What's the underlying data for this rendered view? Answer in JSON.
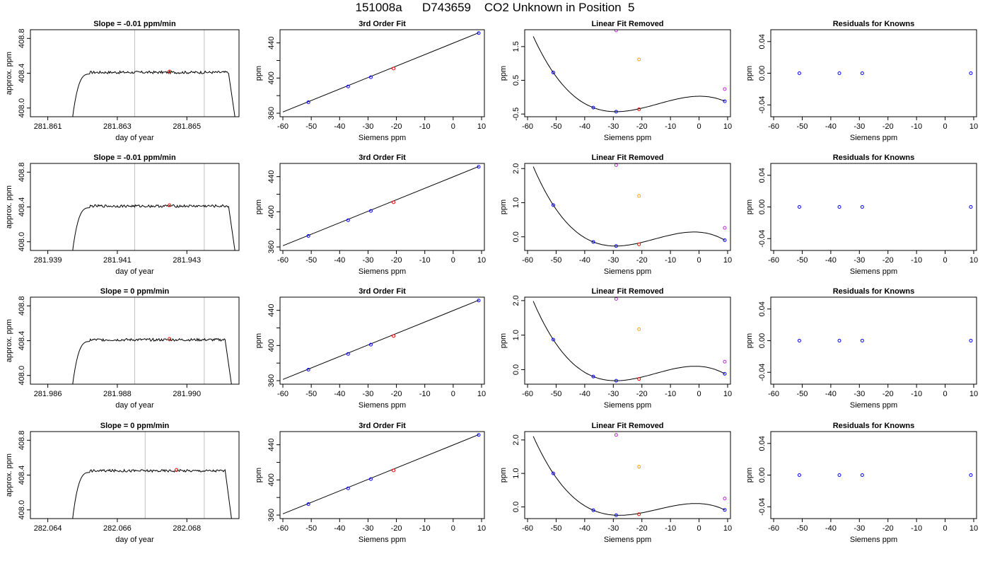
{
  "page_title": "151008a      D743659    CO2 Unknown in Position  5",
  "colors": {
    "known": "#0000ff",
    "unknown": "#ff0000",
    "orange": "#ffa500",
    "magenta": "#c020e0",
    "vline": "#bebebe",
    "curve": "#000000"
  },
  "chart_data": [
    {
      "type": "line",
      "row": 0,
      "col": 0,
      "title": "Slope =  -0.01  ppm/min",
      "xlabel": "day of year",
      "ylabel": "approx. ppm",
      "xlim": [
        281.8605,
        281.8665
      ],
      "ylim": [
        407.9,
        408.9
      ],
      "xticks": [
        281.861,
        281.863,
        281.865
      ],
      "xtick_labels": [
        "281.861",
        "281.863",
        "281.865"
      ],
      "yticks": [
        408.0,
        408.4,
        408.8
      ],
      "ytick_labels": [
        "408.0",
        "408.4",
        "408.8"
      ],
      "trace": {
        "x_start": 281.8617,
        "x_plateau": 281.8622,
        "x_end_plateau": 281.8662,
        "x_end": 281.8664,
        "level": 408.42,
        "noise": 0.03
      },
      "vlines": [
        281.8635,
        281.8655
      ],
      "mean_point": {
        "x": 281.8645,
        "y": 408.42
      }
    },
    {
      "type": "scatter",
      "row": 0,
      "col": 1,
      "title": "3rd Order Fit",
      "xlabel": "Siemens ppm",
      "ylabel": "ppm",
      "xlim": [
        -61,
        11
      ],
      "ylim": [
        356,
        455
      ],
      "xticks": [
        -60,
        -50,
        -40,
        -30,
        -20,
        -10,
        0,
        10
      ],
      "xtick_labels": [
        "-60",
        "-50",
        "-40",
        "-30",
        "-20",
        "-10",
        "0",
        "10"
      ],
      "yticks": [
        360,
        400,
        440
      ],
      "ytick_labels": [
        "360",
        "400",
        "440"
      ],
      "y_minor_ticks": [
        380,
        420
      ],
      "fit_line": {
        "x": [
          -60,
          9
        ],
        "y": [
          361.4,
          451.5
        ]
      },
      "points": [
        {
          "x": -51,
          "y": 372.5,
          "role": "known"
        },
        {
          "x": -37,
          "y": 390.4,
          "role": "known"
        },
        {
          "x": -29,
          "y": 401.0,
          "role": "known"
        },
        {
          "x": -21,
          "y": 410.8,
          "role": "unknown"
        },
        {
          "x": 9,
          "y": 451.2,
          "role": "known"
        }
      ]
    },
    {
      "type": "scatter",
      "row": 0,
      "col": 2,
      "title": "Linear Fit Removed",
      "xlabel": "Siemens ppm",
      "ylabel": "ppm",
      "xlim": [
        -61,
        11
      ],
      "ylim": [
        -0.58,
        2.0
      ],
      "xticks": [
        -60,
        -50,
        -40,
        -30,
        -20,
        -10,
        0,
        10
      ],
      "xtick_labels": [
        "-60",
        "-50",
        "-40",
        "-30",
        "-20",
        "-10",
        "0",
        "10"
      ],
      "yticks": [
        -0.5,
        0.5,
        1.5
      ],
      "ytick_labels": [
        "-0.5",
        "0.5",
        "1.5"
      ],
      "curve": {
        "x0": -58,
        "x1": 9
      },
      "points": [
        {
          "x": -51,
          "y": 0.73,
          "role": "known"
        },
        {
          "x": -37,
          "y": -0.31,
          "role": "known"
        },
        {
          "x": -29,
          "y": -0.43,
          "role": "known"
        },
        {
          "x": -21,
          "y": -0.36,
          "role": "unknown"
        },
        {
          "x": 9,
          "y": -0.12,
          "role": "known"
        },
        {
          "x": -29,
          "y": 1.98,
          "role": "magenta"
        },
        {
          "x": -21,
          "y": 1.12,
          "role": "orange"
        },
        {
          "x": 9,
          "y": 0.24,
          "role": "magenta"
        }
      ]
    },
    {
      "type": "scatter",
      "row": 0,
      "col": 3,
      "title": "Residuals for Knowns",
      "xlabel": "Siemens ppm",
      "ylabel": "ppm",
      "xlim": [
        -61,
        11
      ],
      "ylim": [
        -0.055,
        0.055
      ],
      "xticks": [
        -60,
        -50,
        -40,
        -30,
        -20,
        -10,
        0,
        10
      ],
      "xtick_labels": [
        "-60",
        "-50",
        "-40",
        "-30",
        "-20",
        "-10",
        "0",
        "10"
      ],
      "yticks": [
        -0.04,
        0.0,
        0.04
      ],
      "ytick_labels": [
        "-0.04",
        "0.00",
        "0.04"
      ],
      "points": [
        {
          "x": -51,
          "y": 0.0,
          "role": "known"
        },
        {
          "x": -37,
          "y": 0.0,
          "role": "known"
        },
        {
          "x": -29,
          "y": 0.0,
          "role": "known"
        },
        {
          "x": 9,
          "y": 0.0,
          "role": "known"
        }
      ]
    },
    {
      "type": "line",
      "row": 1,
      "col": 0,
      "title": "Slope =  -0.01  ppm/min",
      "xlabel": "day of year",
      "ylabel": "approx. ppm",
      "xlim": [
        281.9385,
        281.9445
      ],
      "ylim": [
        407.9,
        408.9
      ],
      "xticks": [
        281.939,
        281.941,
        281.943
      ],
      "xtick_labels": [
        "281.939",
        "281.941",
        "281.943"
      ],
      "yticks": [
        408.0,
        408.4,
        408.8
      ],
      "ytick_labels": [
        "408.0",
        "408.4",
        "408.8"
      ],
      "trace": {
        "x_start": 281.9397,
        "x_plateau": 281.9402,
        "x_end_plateau": 281.9442,
        "x_end": 281.9444,
        "level": 408.42,
        "noise": 0.03
      },
      "vlines": [
        281.9415,
        281.9435
      ],
      "mean_point": {
        "x": 281.9425,
        "y": 408.42
      }
    },
    {
      "type": "scatter",
      "row": 1,
      "col": 1,
      "title": "3rd Order Fit",
      "xlabel": "Siemens ppm",
      "ylabel": "ppm",
      "xlim": [
        -61,
        11
      ],
      "ylim": [
        356,
        455
      ],
      "xticks": [
        -60,
        -50,
        -40,
        -30,
        -20,
        -10,
        0,
        10
      ],
      "xtick_labels": [
        "-60",
        "-50",
        "-40",
        "-30",
        "-20",
        "-10",
        "0",
        "10"
      ],
      "yticks": [
        360,
        400,
        440
      ],
      "ytick_labels": [
        "360",
        "400",
        "440"
      ],
      "y_minor_ticks": [
        380,
        420
      ],
      "fit_line": {
        "x": [
          -60,
          9
        ],
        "y": [
          361.4,
          451.5
        ]
      },
      "points": [
        {
          "x": -51,
          "y": 372.5,
          "role": "known"
        },
        {
          "x": -37,
          "y": 390.4,
          "role": "known"
        },
        {
          "x": -29,
          "y": 401.0,
          "role": "known"
        },
        {
          "x": -21,
          "y": 410.8,
          "role": "unknown"
        },
        {
          "x": 9,
          "y": 451.2,
          "role": "known"
        }
      ]
    },
    {
      "type": "scatter",
      "row": 1,
      "col": 2,
      "title": "Linear Fit Removed",
      "xlabel": "Siemens ppm",
      "ylabel": "ppm",
      "xlim": [
        -61,
        11
      ],
      "ylim": [
        -0.4,
        2.15
      ],
      "xticks": [
        -60,
        -50,
        -40,
        -30,
        -20,
        -10,
        0,
        10
      ],
      "xtick_labels": [
        "-60",
        "-50",
        "-40",
        "-30",
        "-20",
        "-10",
        "0",
        "10"
      ],
      "yticks": [
        0.0,
        1.0,
        2.0
      ],
      "ytick_labels": [
        "0.0",
        "1.0",
        "2.0"
      ],
      "curve": {
        "x0": -58,
        "x1": 9
      },
      "points": [
        {
          "x": -51,
          "y": 0.93,
          "role": "known"
        },
        {
          "x": -37,
          "y": -0.15,
          "role": "known"
        },
        {
          "x": -29,
          "y": -0.27,
          "role": "known"
        },
        {
          "x": -21,
          "y": -0.22,
          "role": "unknown"
        },
        {
          "x": 9,
          "y": -0.1,
          "role": "known"
        },
        {
          "x": -29,
          "y": 2.1,
          "role": "magenta"
        },
        {
          "x": -21,
          "y": 1.2,
          "role": "orange"
        },
        {
          "x": 9,
          "y": 0.26,
          "role": "magenta"
        }
      ]
    },
    {
      "type": "scatter",
      "row": 1,
      "col": 3,
      "title": "Residuals for Knowns",
      "xlabel": "Siemens ppm",
      "ylabel": "ppm",
      "xlim": [
        -61,
        11
      ],
      "ylim": [
        -0.055,
        0.055
      ],
      "xticks": [
        -60,
        -50,
        -40,
        -30,
        -20,
        -10,
        0,
        10
      ],
      "xtick_labels": [
        "-60",
        "-50",
        "-40",
        "-30",
        "-20",
        "-10",
        "0",
        "10"
      ],
      "yticks": [
        -0.04,
        0.0,
        0.04
      ],
      "ytick_labels": [
        "-0.04",
        "0.00",
        "0.04"
      ],
      "points": [
        {
          "x": -51,
          "y": 0.0,
          "role": "known"
        },
        {
          "x": -37,
          "y": 0.0,
          "role": "known"
        },
        {
          "x": -29,
          "y": 0.0,
          "role": "known"
        },
        {
          "x": 9,
          "y": 0.0,
          "role": "known"
        }
      ]
    },
    {
      "type": "line",
      "row": 2,
      "col": 0,
      "title": "Slope =  0  ppm/min",
      "xlabel": "day of year",
      "ylabel": "approx. ppm",
      "xlim": [
        281.9855,
        281.9915
      ],
      "ylim": [
        407.9,
        408.9
      ],
      "xticks": [
        281.986,
        281.988,
        281.99
      ],
      "xtick_labels": [
        "281.986",
        "281.988",
        "281.990"
      ],
      "yticks": [
        408.0,
        408.4,
        408.8
      ],
      "ytick_labels": [
        "408.0",
        "408.4",
        "408.8"
      ],
      "trace": {
        "x_start": 281.9867,
        "x_plateau": 281.9872,
        "x_end_plateau": 281.9911,
        "x_end": 281.9913,
        "level": 408.42,
        "noise": 0.03
      },
      "vlines": [
        281.9885,
        281.9905
      ],
      "mean_point": {
        "x": 281.9895,
        "y": 408.42
      }
    },
    {
      "type": "scatter",
      "row": 2,
      "col": 1,
      "title": "3rd Order Fit",
      "xlabel": "Siemens ppm",
      "ylabel": "ppm",
      "xlim": [
        -61,
        11
      ],
      "ylim": [
        356,
        455
      ],
      "xticks": [
        -60,
        -50,
        -40,
        -30,
        -20,
        -10,
        0,
        10
      ],
      "xtick_labels": [
        "-60",
        "-50",
        "-40",
        "-30",
        "-20",
        "-10",
        "0",
        "10"
      ],
      "yticks": [
        360,
        400,
        440
      ],
      "ytick_labels": [
        "360",
        "400",
        "440"
      ],
      "y_minor_ticks": [
        380,
        420
      ],
      "fit_line": {
        "x": [
          -60,
          9
        ],
        "y": [
          361.4,
          451.5
        ]
      },
      "points": [
        {
          "x": -51,
          "y": 372.5,
          "role": "known"
        },
        {
          "x": -37,
          "y": 390.4,
          "role": "known"
        },
        {
          "x": -29,
          "y": 401.0,
          "role": "known"
        },
        {
          "x": -21,
          "y": 410.8,
          "role": "unknown"
        },
        {
          "x": 9,
          "y": 451.2,
          "role": "known"
        }
      ]
    },
    {
      "type": "scatter",
      "row": 2,
      "col": 2,
      "title": "Linear Fit Removed",
      "xlabel": "Siemens ppm",
      "ylabel": "ppm",
      "xlim": [
        -61,
        11
      ],
      "ylim": [
        -0.42,
        2.1
      ],
      "xticks": [
        -60,
        -50,
        -40,
        -30,
        -20,
        -10,
        0,
        10
      ],
      "xtick_labels": [
        "-60",
        "-50",
        "-40",
        "-30",
        "-20",
        "-10",
        "0",
        "10"
      ],
      "yticks": [
        0.0,
        1.0,
        2.0
      ],
      "ytick_labels": [
        "0.0",
        "1.0",
        "2.0"
      ],
      "curve": {
        "x0": -58,
        "x1": 9
      },
      "points": [
        {
          "x": -51,
          "y": 0.87,
          "role": "known"
        },
        {
          "x": -37,
          "y": -0.2,
          "role": "known"
        },
        {
          "x": -29,
          "y": -0.32,
          "role": "known"
        },
        {
          "x": -21,
          "y": -0.27,
          "role": "unknown"
        },
        {
          "x": 9,
          "y": -0.12,
          "role": "known"
        },
        {
          "x": -29,
          "y": 2.05,
          "role": "magenta"
        },
        {
          "x": -21,
          "y": 1.17,
          "role": "orange"
        },
        {
          "x": 9,
          "y": 0.23,
          "role": "magenta"
        }
      ]
    },
    {
      "type": "scatter",
      "row": 2,
      "col": 3,
      "title": "Residuals for Knowns",
      "xlabel": "Siemens ppm",
      "ylabel": "ppm",
      "xlim": [
        -61,
        11
      ],
      "ylim": [
        -0.055,
        0.055
      ],
      "xticks": [
        -60,
        -50,
        -40,
        -30,
        -20,
        -10,
        0,
        10
      ],
      "xtick_labels": [
        "-60",
        "-50",
        "-40",
        "-30",
        "-20",
        "-10",
        "0",
        "10"
      ],
      "yticks": [
        -0.04,
        0.0,
        0.04
      ],
      "ytick_labels": [
        "-0.04",
        "0.00",
        "0.04"
      ],
      "points": [
        {
          "x": -51,
          "y": 0.0,
          "role": "known"
        },
        {
          "x": -37,
          "y": 0.0,
          "role": "known"
        },
        {
          "x": -29,
          "y": 0.0,
          "role": "known"
        },
        {
          "x": 9,
          "y": 0.0,
          "role": "known"
        }
      ]
    },
    {
      "type": "line",
      "row": 3,
      "col": 0,
      "title": "Slope =  0  ppm/min",
      "xlabel": "day of year",
      "ylabel": "approx. ppm",
      "xlim": [
        282.0635,
        282.0695
      ],
      "ylim": [
        407.9,
        408.9
      ],
      "xticks": [
        282.064,
        282.066,
        282.068
      ],
      "xtick_labels": [
        "282.064",
        "282.066",
        "282.068"
      ],
      "yticks": [
        408.0,
        408.4,
        408.8
      ],
      "ytick_labels": [
        "408.0",
        "408.4",
        "408.8"
      ],
      "trace": {
        "x_start": 282.0647,
        "x_plateau": 282.0652,
        "x_end_plateau": 282.0691,
        "x_end": 282.0693,
        "level": 408.46,
        "noise": 0.03
      },
      "vlines": [
        282.0668,
        282.0685
      ],
      "mean_point": {
        "x": 282.0677,
        "y": 408.46
      }
    },
    {
      "type": "scatter",
      "row": 3,
      "col": 1,
      "title": "3rd Order Fit",
      "xlabel": "Siemens ppm",
      "ylabel": "ppm",
      "xlim": [
        -61,
        11
      ],
      "ylim": [
        356,
        455
      ],
      "xticks": [
        -60,
        -50,
        -40,
        -30,
        -20,
        -10,
        0,
        10
      ],
      "xtick_labels": [
        "-60",
        "-50",
        "-40",
        "-30",
        "-20",
        "-10",
        "0",
        "10"
      ],
      "yticks": [
        360,
        400,
        440
      ],
      "ytick_labels": [
        "360",
        "400",
        "440"
      ],
      "y_minor_ticks": [
        380,
        420
      ],
      "fit_line": {
        "x": [
          -60,
          9
        ],
        "y": [
          361.4,
          451.5
        ]
      },
      "points": [
        {
          "x": -51,
          "y": 372.5,
          "role": "known"
        },
        {
          "x": -37,
          "y": 390.4,
          "role": "known"
        },
        {
          "x": -29,
          "y": 401.0,
          "role": "known"
        },
        {
          "x": -21,
          "y": 410.8,
          "role": "unknown"
        },
        {
          "x": 9,
          "y": 451.2,
          "role": "known"
        }
      ]
    },
    {
      "type": "scatter",
      "row": 3,
      "col": 2,
      "title": "Linear Fit Removed",
      "xlabel": "Siemens ppm",
      "ylabel": "ppm",
      "xlim": [
        -61,
        11
      ],
      "ylim": [
        -0.35,
        2.25
      ],
      "xticks": [
        -60,
        -50,
        -40,
        -30,
        -20,
        -10,
        0,
        10
      ],
      "xtick_labels": [
        "-60",
        "-50",
        "-40",
        "-30",
        "-20",
        "-10",
        "0",
        "10"
      ],
      "yticks": [
        0.0,
        1.0,
        2.0
      ],
      "ytick_labels": [
        "0.0",
        "1.0",
        "2.0"
      ],
      "curve": {
        "x0": -58,
        "x1": 9
      },
      "points": [
        {
          "x": -51,
          "y": 1.0,
          "role": "known"
        },
        {
          "x": -37,
          "y": -0.1,
          "role": "known"
        },
        {
          "x": -29,
          "y": -0.25,
          "role": "known"
        },
        {
          "x": -21,
          "y": -0.22,
          "role": "unknown"
        },
        {
          "x": 9,
          "y": -0.09,
          "role": "known"
        },
        {
          "x": -29,
          "y": 2.15,
          "role": "magenta"
        },
        {
          "x": -21,
          "y": 1.2,
          "role": "orange"
        },
        {
          "x": 9,
          "y": 0.25,
          "role": "magenta"
        }
      ]
    },
    {
      "type": "scatter",
      "row": 3,
      "col": 3,
      "title": "Residuals for Knowns",
      "xlabel": "Siemens ppm",
      "ylabel": "ppm",
      "xlim": [
        -61,
        11
      ],
      "ylim": [
        -0.055,
        0.055
      ],
      "xticks": [
        -60,
        -50,
        -40,
        -30,
        -20,
        -10,
        0,
        10
      ],
      "xtick_labels": [
        "-60",
        "-50",
        "-40",
        "-30",
        "-20",
        "-10",
        "0",
        "10"
      ],
      "yticks": [
        -0.04,
        0.0,
        0.04
      ],
      "ytick_labels": [
        "-0.04",
        "0.00",
        "0.04"
      ],
      "points": [
        {
          "x": -51,
          "y": 0.0,
          "role": "known"
        },
        {
          "x": -37,
          "y": 0.0,
          "role": "known"
        },
        {
          "x": -29,
          "y": 0.0,
          "role": "known"
        },
        {
          "x": 9,
          "y": 0.0,
          "role": "known"
        }
      ]
    }
  ]
}
